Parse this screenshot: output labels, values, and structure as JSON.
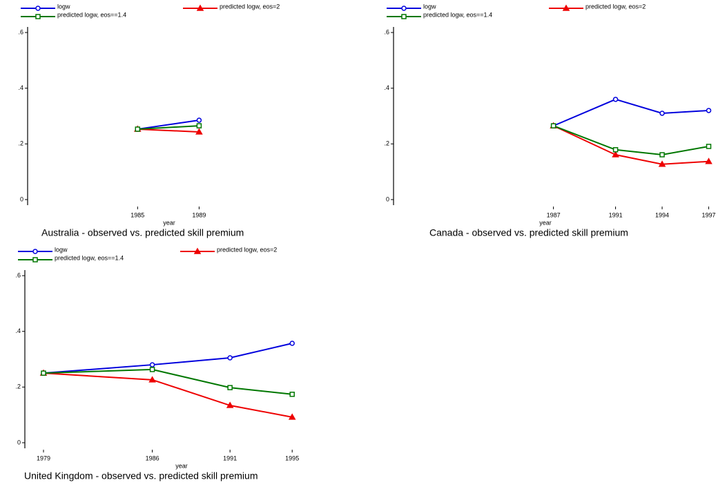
{
  "chart_data": [
    {
      "type": "line",
      "title": "Australia - observed vs. predicted skill premium",
      "xlabel": "year",
      "x": [
        1985,
        1989
      ],
      "xlim": [
        1977.85,
        1997.6
      ],
      "xticks": [
        1985,
        1989
      ],
      "ylim": [
        -0.02,
        0.62
      ],
      "yticks": [
        0,
        {
          "value": 0.2,
          "label": ".2"
        },
        {
          "value": 0.4,
          "label": ".4"
        },
        {
          "value": 0.6,
          "label": ".6"
        }
      ],
      "series": [
        {
          "name": "logw",
          "color": "#0000dd",
          "marker": "circle",
          "values": [
            0.253,
            0.285
          ]
        },
        {
          "name": "predicted logw, eos=2",
          "color": "#ee0000",
          "marker": "triangle",
          "values": [
            0.253,
            0.243
          ]
        },
        {
          "name": "predicted logw, eos==1.4",
          "color": "#007700",
          "marker": "square",
          "values": [
            0.253,
            0.265
          ]
        }
      ]
    },
    {
      "type": "line",
      "title": "Canada - observed vs. predicted skill premium",
      "xlabel": "year",
      "x": [
        1987,
        1991,
        1994,
        1997
      ],
      "xlim": [
        1976.7,
        1997.6
      ],
      "xticks": [
        1987,
        1991,
        1994,
        1997
      ],
      "ylim": [
        -0.02,
        0.62
      ],
      "yticks": [
        0,
        {
          "value": 0.2,
          "label": ".2"
        },
        {
          "value": 0.4,
          "label": ".4"
        },
        {
          "value": 0.6,
          "label": ".6"
        }
      ],
      "series": [
        {
          "name": "logw",
          "color": "#0000dd",
          "marker": "circle",
          "values": [
            0.265,
            0.36,
            0.31,
            0.32
          ]
        },
        {
          "name": "predicted logw, eos=2",
          "color": "#ee0000",
          "marker": "triangle",
          "values": [
            0.265,
            0.161,
            0.127,
            0.137
          ]
        },
        {
          "name": "predicted logw, eos==1.4",
          "color": "#007700",
          "marker": "square",
          "values": [
            0.265,
            0.179,
            0.161,
            0.191
          ]
        }
      ]
    },
    {
      "type": "line",
      "title": "United Kingdom - observed vs. predicted skill premium",
      "xlabel": "year",
      "x": [
        1979,
        1986,
        1991,
        1995
      ],
      "xlim": [
        1977.8,
        1999.3
      ],
      "xticks": [
        1979,
        1986,
        1991,
        1995
      ],
      "ylim": [
        -0.02,
        0.62
      ],
      "yticks": [
        0,
        {
          "value": 0.2,
          "label": ".2"
        },
        {
          "value": 0.4,
          "label": ".4"
        },
        {
          "value": 0.6,
          "label": ".6"
        }
      ],
      "series": [
        {
          "name": "logw",
          "color": "#0000dd",
          "marker": "circle",
          "values": [
            0.25,
            0.28,
            0.305,
            0.357
          ]
        },
        {
          "name": "predicted logw, eos=2",
          "color": "#ee0000",
          "marker": "triangle",
          "values": [
            0.25,
            0.226,
            0.134,
            0.092
          ]
        },
        {
          "name": "predicted logw, eos==1.4",
          "color": "#007700",
          "marker": "square",
          "values": [
            0.25,
            0.263,
            0.198,
            0.174
          ]
        }
      ]
    }
  ]
}
